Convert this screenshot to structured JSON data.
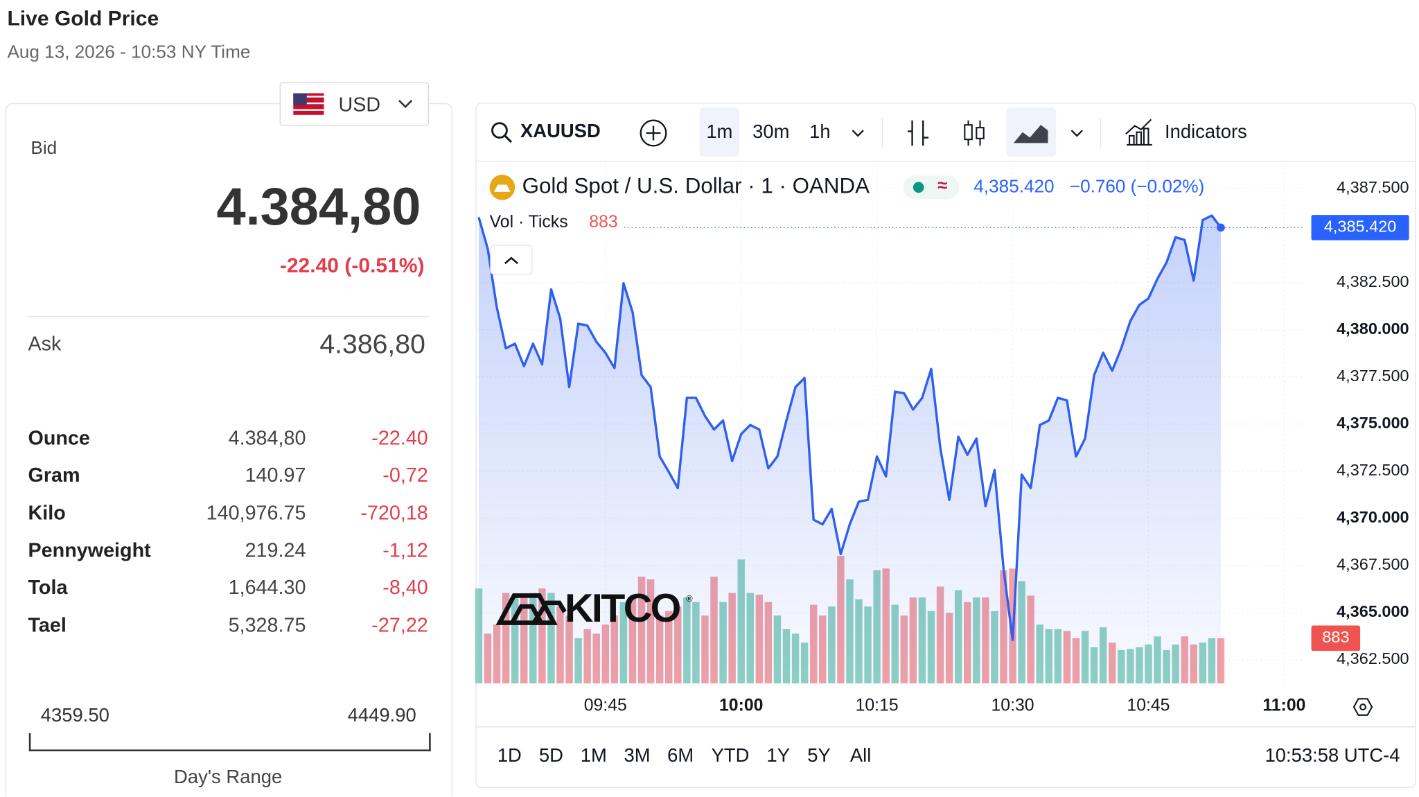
{
  "header": {
    "title": "Live Gold Price",
    "subtitle": "Aug 13, 2026 - 10:53 NY Time"
  },
  "currency": "USD",
  "bid": {
    "label": "Bid",
    "value": "4.384,80",
    "change": "-22.40 (-0.51%)"
  },
  "ask": {
    "label": "Ask",
    "value": "4.386,80"
  },
  "table": {
    "rows": [
      [
        "Ounce",
        "4.384,80",
        "-22.40"
      ],
      [
        "Gram",
        "140.97",
        "-0,72"
      ],
      [
        "Kilo",
        "140,976.75",
        "-720,18"
      ],
      [
        "Pennyweight",
        "219.24",
        "-1,12"
      ],
      [
        "Tola",
        "1,644.30",
        "-8,40"
      ],
      [
        "Tael",
        "5,328.75",
        "-27,22"
      ]
    ]
  },
  "range": {
    "low": "4359.50",
    "high": "4449.90",
    "label": "Day's Range"
  },
  "toolbar": {
    "symbol": "XAUUSD",
    "intervals": [
      "1m",
      "30m",
      "1h"
    ],
    "indicators": "Indicators"
  },
  "chart_data": {
    "type": "line",
    "title": "Gold Spot / U.S. Dollar · 1 · OANDA",
    "last_label": "4,385.420",
    "change_label": "−0.760 (−0.02%)",
    "watermark": "KITCO",
    "x": [
      "09:31",
      "09:32",
      "09:33",
      "09:34",
      "09:35",
      "09:36",
      "09:37",
      "09:38",
      "09:39",
      "09:40",
      "09:41",
      "09:42",
      "09:43",
      "09:44",
      "09:45",
      "09:46",
      "09:47",
      "09:48",
      "09:49",
      "09:50",
      "09:51",
      "09:52",
      "09:53",
      "09:54",
      "09:55",
      "09:56",
      "09:57",
      "09:58",
      "09:59",
      "10:00",
      "10:01",
      "10:02",
      "10:03",
      "10:04",
      "10:05",
      "10:06",
      "10:07",
      "10:08",
      "10:09",
      "10:10",
      "10:11",
      "10:12",
      "10:13",
      "10:14",
      "10:15",
      "10:16",
      "10:17",
      "10:18",
      "10:19",
      "10:20",
      "10:21",
      "10:22",
      "10:23",
      "10:24",
      "10:25",
      "10:26",
      "10:27",
      "10:28",
      "10:29",
      "10:30",
      "10:31",
      "10:32",
      "10:33",
      "10:34",
      "10:35",
      "10:36",
      "10:37",
      "10:38",
      "10:39",
      "10:40",
      "10:41",
      "10:42",
      "10:43",
      "10:44",
      "10:45",
      "10:46",
      "10:47",
      "10:48",
      "10:49",
      "10:50",
      "10:51",
      "10:52",
      "10:53"
    ],
    "series": [
      {
        "name": "XAUUSD",
        "color": "#2f5ff0",
        "values": [
          4385.97,
          4384.29,
          4381.18,
          4379.02,
          4379.26,
          4378.07,
          4379.26,
          4378.16,
          4382.14,
          4380.6,
          4376.96,
          4380.32,
          4380.22,
          4379.36,
          4378.78,
          4377.97,
          4382.47,
          4380.94,
          4377.59,
          4376.96,
          4373.28,
          4372.46,
          4371.6,
          4376.39,
          4376.39,
          4375.43,
          4374.71,
          4375.19,
          4373.04,
          4374.47,
          4374.95,
          4374.71,
          4372.65,
          4373.28,
          4375.19,
          4376.96,
          4377.44,
          4369.92,
          4369.68,
          4370.5,
          4368.1,
          4369.68,
          4370.88,
          4370.98,
          4373.28,
          4372.22,
          4376.72,
          4376.63,
          4375.77,
          4376.39,
          4377.92,
          4373.75,
          4370.98,
          4374.33,
          4373.37,
          4374.23,
          4370.64,
          4372.56,
          4367.29,
          4363.55,
          4372.32,
          4371.6,
          4374.95,
          4375.19,
          4376.39,
          4376.25,
          4373.28,
          4374.23,
          4377.59,
          4378.78,
          4377.83,
          4379.02,
          4380.46,
          4381.32,
          4381.66,
          4382.71,
          4383.57,
          4384.91,
          4384.77,
          4382.61,
          4385.82,
          4386.06,
          4385.42
        ]
      }
    ],
    "volume": {
      "name": "Vol · Ticks",
      "up_color": "#8fd1c2",
      "down_color": "#f2a1a5",
      "ylim": [
        0,
        5300
      ],
      "values": [
        1854,
        971,
        1148,
        1766,
        1678,
        1678,
        1766,
        1854,
        1766,
        1501,
        1325,
        883,
        1060,
        971,
        1148,
        1325,
        1589,
        1678,
        2084,
        2031,
        1325,
        1413,
        1501,
        1678,
        1589,
        1325,
        2084,
        1589,
        1766,
        2419,
        1766,
        1731,
        1589,
        1325,
        1060,
        971,
        795,
        1536,
        1325,
        1501,
        2490,
        2031,
        1642,
        1501,
        2208,
        2243,
        1536,
        1325,
        1678,
        1678,
        1413,
        1890,
        1377,
        1819,
        1589,
        1678,
        1678,
        1413,
        2208,
        2243,
        1996,
        1713,
        1148,
        1060,
        1060,
        1024,
        883,
        1024,
        706,
        1095,
        795,
        653,
        671,
        706,
        759,
        918,
        653,
        759,
        918,
        759,
        795,
        883,
        883
      ]
    },
    "xlim": [
      "09:31",
      "11:02"
    ],
    "xticks": [
      "09:45",
      "10:00",
      "10:15",
      "10:30",
      "10:45",
      "11:00"
    ],
    "ylim": [
      4361.0,
      4388.85
    ],
    "yticks": [
      {
        "value": 4362.5,
        "label": "4,362.500"
      },
      {
        "value": 4365,
        "label": "4,365.000"
      },
      {
        "value": 4367.5,
        "label": "4,367.500"
      },
      {
        "value": 4370,
        "label": "4,370.000"
      },
      {
        "value": 4372.5,
        "label": "4,372.500"
      },
      {
        "value": 4375,
        "label": "4,375.000"
      },
      {
        "value": 4377.5,
        "label": "4,377.500"
      },
      {
        "value": 4380,
        "label": "4,380.000"
      },
      {
        "value": 4382.5,
        "label": "4,382.500"
      },
      {
        "value": 4387.5,
        "label": "4,387.500"
      }
    ],
    "grid": true
  },
  "footer": {
    "ranges": [
      "1D",
      "5D",
      "1M",
      "3M",
      "6M",
      "YTD",
      "1Y",
      "5Y",
      "All"
    ],
    "time": "10:53:58 UTC-4"
  }
}
